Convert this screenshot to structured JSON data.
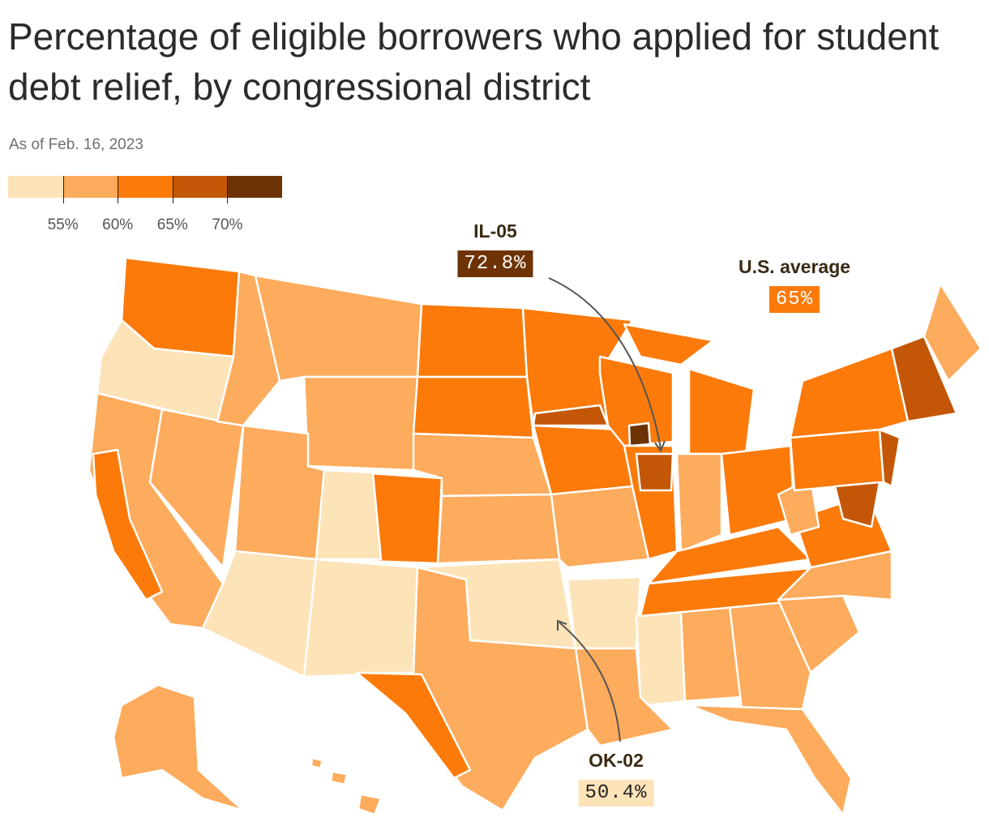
{
  "title": "Percentage of eligible borrowers who applied for student debt relief, by congressional district",
  "subtitle": "As of Feb. 16, 2023",
  "legend": {
    "colors": [
      "#fde3b8",
      "#fdab5c",
      "#fb7a0a",
      "#c35707",
      "#6e3305"
    ],
    "ticks": [
      "55%",
      "60%",
      "65%",
      "70%"
    ]
  },
  "annotations": {
    "il05": {
      "district": "IL-05",
      "value": "72.8%",
      "color": "#6e3305",
      "text_color": "#ffffff"
    },
    "us_average": {
      "label": "U.S. average",
      "value": "65%",
      "color": "#fb7a0a",
      "text_color": "#ffffff"
    },
    "ok02": {
      "district": "OK-02",
      "value": "50.4%",
      "color": "#fde3b8",
      "text_color": "#222222"
    }
  },
  "map_fill": {
    "lightest": "#fde3b8",
    "light": "#fdab5c",
    "mid": "#fb7a0a",
    "dark": "#c35707",
    "darkest": "#6e3305",
    "border": "#ffffff"
  }
}
